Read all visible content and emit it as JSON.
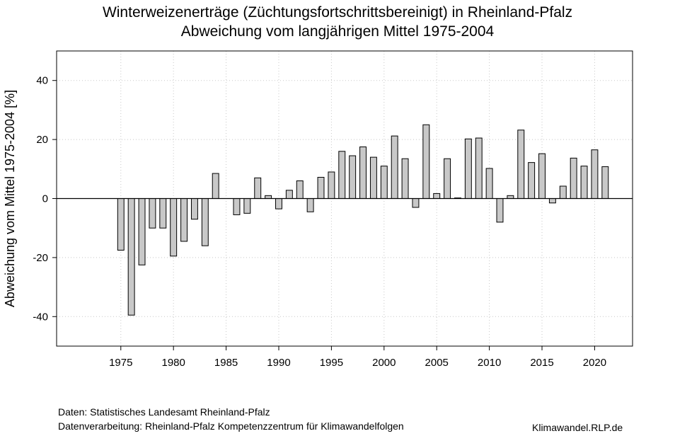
{
  "chart_data": {
    "type": "bar",
    "title": "Winterweizenerträge (Züchtungsfortschrittsbereinigt) in Rheinland-Pfalz",
    "subtitle": "Abweichung vom langjährigen Mittel 1975-2004",
    "ylabel": "Abweichung vom Mittel 1975-2004 [%]",
    "xlabel": "",
    "xlim": [
      1968.9,
      2023.6
    ],
    "ylim": [
      -50,
      50
    ],
    "x_ticks": [
      1975,
      1980,
      1985,
      1990,
      1995,
      2000,
      2005,
      2010,
      2015,
      2020
    ],
    "y_ticks": [
      -40,
      -20,
      0,
      20,
      40
    ],
    "grid": true,
    "bar_color": "#c8c8c8",
    "x": [
      1975,
      1976,
      1977,
      1978,
      1979,
      1980,
      1981,
      1982,
      1983,
      1984,
      1985,
      1986,
      1987,
      1988,
      1989,
      1990,
      1991,
      1992,
      1993,
      1994,
      1995,
      1996,
      1997,
      1998,
      1999,
      2000,
      2001,
      2002,
      2003,
      2004,
      2005,
      2006,
      2007,
      2008,
      2009,
      2010,
      2011,
      2012,
      2013,
      2014,
      2015,
      2016,
      2017,
      2018,
      2019,
      2020,
      2021
    ],
    "values": [
      -17.5,
      -39.5,
      -22.5,
      -10,
      -10,
      -19.5,
      -14.5,
      -7,
      -16,
      8.5,
      0,
      -5.5,
      -5,
      7,
      1,
      -3.5,
      2.8,
      6,
      -4.5,
      7.2,
      9,
      16,
      14.5,
      17.5,
      14,
      11,
      21.2,
      13.5,
      -3,
      25,
      1.7,
      13.5,
      0.2,
      20.2,
      20.5,
      10.2,
      -8,
      1,
      23.2,
      12.2,
      15.2,
      -1.5,
      4.2,
      13.7,
      11,
      16.5,
      10.8
    ]
  },
  "footer": {
    "source": "Daten: Statistisches Landesamt Rheinland-Pfalz",
    "processing": "Datenverarbeitung: Rheinland-Pfalz Kompetenzzentrum für Klimawandelfolgen",
    "website": "Klimawandel.RLP.de"
  }
}
